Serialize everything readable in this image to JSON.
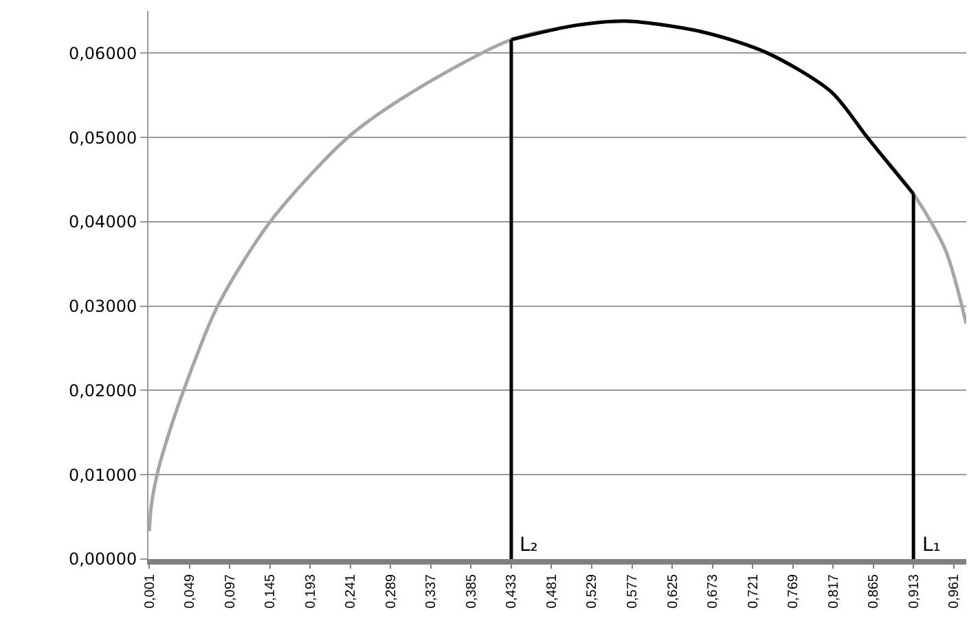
{
  "chart_data": {
    "type": "line",
    "grid": "y",
    "marker": "none",
    "line_style": "solid",
    "xlim": [
      0,
      0.976
    ],
    "ylim": [
      0,
      0.065
    ],
    "xticks": [
      {
        "value": 0.001,
        "label": "0,001"
      },
      {
        "value": 0.049,
        "label": "0,049"
      },
      {
        "value": 0.097,
        "label": "0,097"
      },
      {
        "value": 0.145,
        "label": "0,145"
      },
      {
        "value": 0.193,
        "label": "0,193"
      },
      {
        "value": 0.241,
        "label": "0,241"
      },
      {
        "value": 0.289,
        "label": "0,289"
      },
      {
        "value": 0.337,
        "label": "0,337"
      },
      {
        "value": 0.385,
        "label": "0,385"
      },
      {
        "value": 0.433,
        "label": "0,433"
      },
      {
        "value": 0.481,
        "label": "0,481"
      },
      {
        "value": 0.529,
        "label": "0,529"
      },
      {
        "value": 0.577,
        "label": "0,577"
      },
      {
        "value": 0.625,
        "label": "0,625"
      },
      {
        "value": 0.673,
        "label": "0,673"
      },
      {
        "value": 0.721,
        "label": "0,721"
      },
      {
        "value": 0.769,
        "label": "0,769"
      },
      {
        "value": 0.817,
        "label": "0,817"
      },
      {
        "value": 0.865,
        "label": "0,865"
      },
      {
        "value": 0.913,
        "label": "0,913"
      },
      {
        "value": 0.961,
        "label": "0,961"
      }
    ],
    "yticks": [
      {
        "value": 0,
        "label": "0,00000"
      },
      {
        "value": 0.01,
        "label": "0,01000"
      },
      {
        "value": 0.02,
        "label": "0,02000"
      },
      {
        "value": 0.03,
        "label": "0,03000"
      },
      {
        "value": 0.04,
        "label": "0,04000"
      },
      {
        "value": 0.05,
        "label": "0,05000"
      },
      {
        "value": 0.06,
        "label": "0,06000"
      }
    ],
    "series": [
      {
        "color": "#a6a6a6",
        "x": [
          0.001,
          0.003,
          0.01,
          0.02,
          0.042,
          0.083,
          0.146,
          0.238,
          0.315,
          0.433,
          0.51,
          0.57,
          0.662,
          0.739,
          0.815,
          0.858,
          0.913,
          0.951,
          0.976
        ],
        "values": [
          0.0033,
          0.006,
          0.0099,
          0.0135,
          0.02,
          0.0301,
          0.0401,
          0.05,
          0.0554,
          0.0616,
          0.0633,
          0.0638,
          0.0625,
          0.06,
          0.0554,
          0.05,
          0.0433,
          0.0367,
          0.0279
        ]
      },
      {
        "color": "#000000",
        "x": [
          0.433,
          0.51,
          0.57,
          0.662,
          0.739,
          0.815,
          0.858,
          0.913
        ],
        "values": [
          0.0616,
          0.0633,
          0.0638,
          0.0625,
          0.06,
          0.0554,
          0.05,
          0.0433
        ]
      },
      {
        "color": "#000000",
        "x": [
          0.433,
          0.433
        ],
        "values": [
          0,
          0.0616
        ]
      },
      {
        "color": "#000000",
        "x": [
          0.913,
          0.913
        ],
        "values": [
          0,
          0.0433
        ]
      }
    ],
    "annotations": [
      {
        "text": "L₂",
        "x": 0.433,
        "y": 0
      },
      {
        "text": "L₁",
        "x": 0.913,
        "y": 0
      }
    ]
  }
}
